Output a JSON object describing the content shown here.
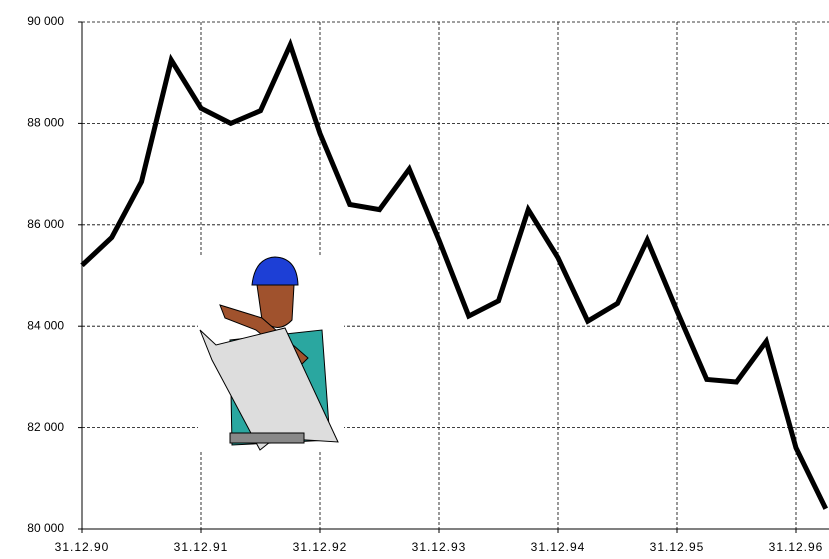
{
  "chart_data": {
    "type": "line",
    "categories": [
      "31.12.90",
      null,
      null,
      null,
      "31.12.91",
      null,
      null,
      null,
      "31.12.92",
      null,
      null,
      null,
      "31.12.93",
      null,
      null,
      null,
      "31.12.94",
      null,
      null,
      null,
      "31.12.95",
      null,
      null,
      null,
      "31.12.96",
      null
    ],
    "values": [
      85200,
      85750,
      86850,
      89250,
      88300,
      88000,
      88250,
      89550,
      87800,
      86400,
      86300,
      87100,
      85700,
      84200,
      84500,
      86300,
      85350,
      84100,
      84450,
      85700,
      84300,
      82950,
      82900,
      83700,
      81600,
      80400
    ],
    "color": "#000000",
    "ylim": [
      80000,
      90000
    ],
    "yticks": [
      {
        "value": 80000,
        "label": "80 000"
      },
      {
        "value": 82000,
        "label": "82 000"
      },
      {
        "value": 84000,
        "label": "84 000"
      },
      {
        "value": 86000,
        "label": "86 000"
      },
      {
        "value": 88000,
        "label": "88 000"
      },
      {
        "value": 90000,
        "label": "90 000"
      }
    ],
    "grid": true
  }
}
